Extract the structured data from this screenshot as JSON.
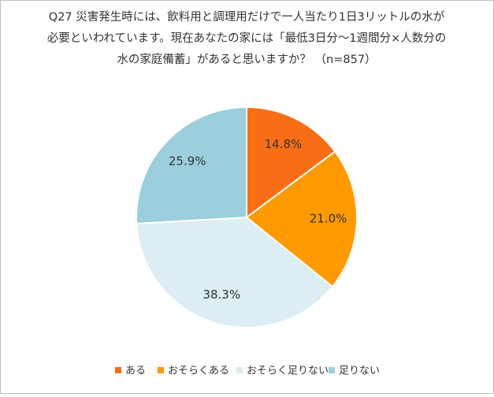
{
  "chart_data": {
    "type": "pie",
    "title": [
      "Q27 災害発生時には、飲料用と調理用だけで一人当たり1日3リットルの水が",
      "必要といわれています。現在あなたの家には「最低3日分～1週間分×人数分の",
      "水の家庭備蓄」があると思いますか？ （n=857）"
    ],
    "categories": [
      "ある",
      "おそらくある",
      "おそらく足りない",
      "足りない"
    ],
    "values": [
      14.8,
      21.0,
      38.3,
      25.9
    ],
    "value_labels": [
      "14.8%",
      "21.0%",
      "38.3%",
      "25.9%"
    ],
    "colors": [
      "#f86e15",
      "#ff9a00",
      "#dcedf3",
      "#9bcfde"
    ],
    "legend": "bottom"
  }
}
